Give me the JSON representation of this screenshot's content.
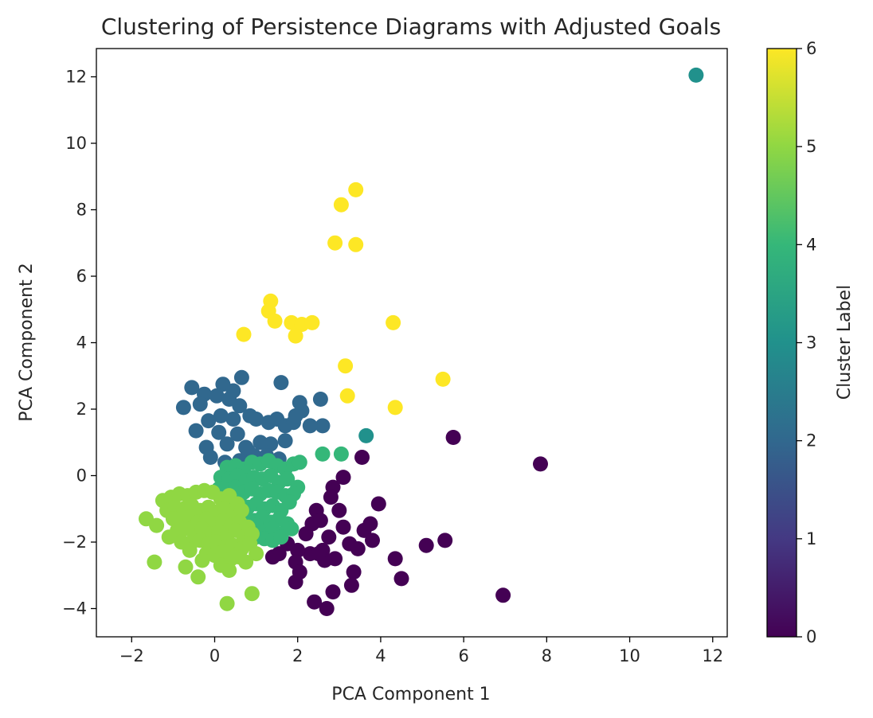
{
  "chart_data": {
    "type": "scatter",
    "title": "Clustering of Persistence Diagrams with Adjusted Goals",
    "xlabel": "PCA Component 1",
    "ylabel": "PCA Component 2",
    "xlim": [
      -2.85,
      12.35
    ],
    "ylim": [
      -4.85,
      12.85
    ],
    "xticks": [
      -2,
      0,
      2,
      4,
      6,
      8,
      10,
      12
    ],
    "yticks": [
      -4,
      -2,
      0,
      2,
      4,
      6,
      8,
      10,
      12
    ],
    "grid": false,
    "colorbar": {
      "label": "Cluster Label",
      "range": [
        0,
        6
      ],
      "ticks": [
        0,
        1,
        2,
        3,
        4,
        5,
        6
      ],
      "colormap": "viridis"
    },
    "colors": [
      "#440154",
      "#443983",
      "#31688e",
      "#21918c",
      "#35b779",
      "#90d743",
      "#fde725"
    ],
    "series": [
      {
        "cluster": 0,
        "x": [
          5.75,
          7.85,
          3.55,
          3.1,
          2.85,
          3.95,
          2.8,
          2.45,
          2.35,
          2.55,
          3.0,
          3.1,
          3.6,
          2.75,
          3.25,
          3.8,
          2.6,
          2.3,
          2.0,
          1.95,
          2.9,
          3.45,
          3.75,
          4.35,
          5.1,
          5.55,
          4.5,
          3.35,
          2.65,
          2.5,
          1.95,
          2.05,
          2.4,
          2.85,
          1.75,
          1.55,
          1.4,
          6.95,
          2.2,
          2.7,
          3.3
        ],
        "y": [
          1.15,
          0.35,
          0.55,
          -0.05,
          -0.35,
          -0.85,
          -0.65,
          -1.05,
          -1.45,
          -1.35,
          -1.05,
          -1.55,
          -1.65,
          -1.85,
          -2.05,
          -1.95,
          -2.25,
          -2.35,
          -2.25,
          -2.6,
          -2.5,
          -2.2,
          -1.45,
          -2.5,
          -2.1,
          -1.95,
          -3.1,
          -2.9,
          -2.55,
          -2.35,
          -3.2,
          -2.9,
          -3.8,
          -3.5,
          -2.05,
          -2.35,
          -2.45,
          -3.6,
          -1.75,
          -4.0,
          -3.3
        ]
      },
      {
        "cluster": 2,
        "x": [
          -0.55,
          -0.25,
          0.2,
          0.45,
          0.65,
          -0.75,
          -0.35,
          0.05,
          0.35,
          0.6,
          0.85,
          1.0,
          1.3,
          1.5,
          1.7,
          1.9,
          2.1,
          2.55,
          1.6,
          2.05,
          1.95,
          1.7,
          1.35,
          1.1,
          0.8,
          2.6,
          2.3,
          0.45,
          0.15,
          -0.15,
          -0.45,
          0.1,
          0.55,
          0.3,
          -0.2,
          0.75,
          0.95,
          1.25,
          1.55,
          0.6,
          0.25,
          -0.1
        ],
        "y": [
          2.65,
          2.45,
          2.75,
          2.55,
          2.95,
          2.05,
          2.15,
          2.4,
          2.3,
          2.1,
          1.8,
          1.7,
          1.6,
          1.7,
          1.5,
          1.6,
          1.95,
          2.3,
          2.8,
          2.2,
          1.8,
          1.05,
          0.95,
          1.0,
          0.75,
          1.5,
          1.5,
          1.7,
          1.8,
          1.65,
          1.35,
          1.3,
          1.25,
          0.95,
          0.85,
          0.85,
          0.6,
          0.6,
          0.5,
          0.45,
          0.4,
          0.55
        ]
      },
      {
        "cluster": 3,
        "x": [
          11.6,
          3.65
        ],
        "y": [
          12.05,
          1.2
        ]
      },
      {
        "cluster": 4,
        "x": [
          0.3,
          0.5,
          0.7,
          0.9,
          1.1,
          1.3,
          1.5,
          1.7,
          1.9,
          2.05,
          2.6,
          3.05,
          0.15,
          0.35,
          0.55,
          0.75,
          0.95,
          1.15,
          1.35,
          1.55,
          1.75,
          2.0,
          0.1,
          0.3,
          0.5,
          0.7,
          0.9,
          1.1,
          1.3,
          1.5,
          1.7,
          1.9,
          0.2,
          0.4,
          0.6,
          0.8,
          1.0,
          1.2,
          1.4,
          1.6,
          1.8,
          0.35,
          0.55,
          0.75,
          0.95,
          1.15,
          1.35,
          1.55,
          1.75,
          0.6,
          0.8,
          1.0,
          1.2,
          1.4,
          1.6,
          1.0,
          1.2,
          1.4,
          1.6,
          1.85
        ],
        "y": [
          0.25,
          0.3,
          0.2,
          0.4,
          0.35,
          0.45,
          0.3,
          0.2,
          0.35,
          0.4,
          0.65,
          0.65,
          -0.05,
          -0.1,
          0.0,
          -0.15,
          -0.05,
          -0.1,
          0.0,
          -0.2,
          -0.1,
          -0.35,
          -0.4,
          -0.45,
          -0.35,
          -0.5,
          -0.4,
          -0.55,
          -0.45,
          -0.5,
          -0.6,
          -0.55,
          -0.75,
          -0.85,
          -0.8,
          -0.95,
          -0.85,
          -1.0,
          -0.9,
          -1.05,
          -0.8,
          -1.15,
          -1.25,
          -1.2,
          -1.35,
          -1.25,
          -1.4,
          -1.3,
          -1.45,
          -1.55,
          -1.6,
          -1.5,
          -1.7,
          -1.6,
          -1.75,
          -1.85,
          -1.9,
          -1.95,
          -1.85,
          -1.6
        ]
      },
      {
        "cluster": 5,
        "x": [
          -1.25,
          -1.05,
          -0.85,
          -0.65,
          -0.45,
          -0.25,
          -0.05,
          0.15,
          0.35,
          0.55,
          -1.15,
          -0.95,
          -0.75,
          -0.55,
          -0.35,
          -0.15,
          0.05,
          0.25,
          0.45,
          0.65,
          -1.0,
          -0.8,
          -0.6,
          -0.4,
          -0.2,
          0.0,
          0.2,
          0.4,
          0.6,
          0.8,
          -0.9,
          -0.7,
          -0.5,
          -0.3,
          -0.1,
          0.1,
          0.3,
          0.5,
          0.7,
          0.9,
          -0.55,
          -0.35,
          -0.15,
          0.05,
          0.25,
          0.45,
          0.65,
          0.85,
          -0.2,
          0.0,
          0.2,
          0.4,
          0.6,
          -1.65,
          -1.4,
          -1.1,
          -0.8,
          -0.6,
          -0.3,
          0.15,
          0.35,
          0.75,
          1.0,
          -1.45,
          -0.7,
          0.3,
          0.9,
          -0.4
        ],
        "y": [
          -0.75,
          -0.65,
          -0.55,
          -0.6,
          -0.5,
          -0.45,
          -0.5,
          -0.7,
          -0.6,
          -0.85,
          -1.05,
          -0.95,
          -1.0,
          -0.9,
          -1.05,
          -0.95,
          -1.1,
          -1.0,
          -1.15,
          -1.05,
          -1.3,
          -1.35,
          -1.25,
          -1.4,
          -1.3,
          -1.45,
          -1.35,
          -1.5,
          -1.4,
          -1.55,
          -1.65,
          -1.6,
          -1.7,
          -1.6,
          -1.75,
          -1.7,
          -1.8,
          -1.65,
          -1.85,
          -1.75,
          -2.0,
          -1.95,
          -2.05,
          -2.0,
          -2.15,
          -2.1,
          -2.2,
          -2.05,
          -2.35,
          -2.4,
          -2.3,
          -2.5,
          -2.45,
          -1.3,
          -1.5,
          -1.85,
          -2.0,
          -2.25,
          -2.55,
          -2.7,
          -2.85,
          -2.6,
          -2.35,
          -2.6,
          -2.75,
          -3.85,
          -3.55,
          -3.05
        ]
      },
      {
        "cluster": 6,
        "x": [
          3.4,
          3.05,
          2.9,
          3.4,
          1.35,
          1.3,
          1.45,
          0.7,
          1.85,
          2.1,
          2.35,
          1.95,
          4.3,
          3.15,
          3.2,
          5.5,
          4.35
        ],
        "y": [
          8.6,
          8.15,
          7.0,
          6.95,
          5.25,
          4.95,
          4.65,
          4.25,
          4.6,
          4.55,
          4.6,
          4.2,
          4.6,
          3.3,
          2.4,
          2.9,
          2.05
        ]
      }
    ]
  }
}
